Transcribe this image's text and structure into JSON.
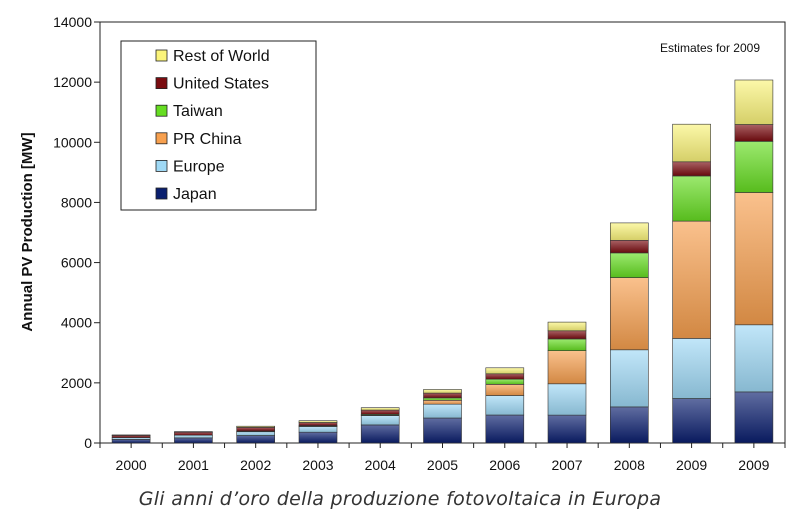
{
  "chart_data": {
    "type": "bar",
    "stacked": true,
    "categories": [
      "2000",
      "2001",
      "2002",
      "2003",
      "2004",
      "2005",
      "2006",
      "2007",
      "2008",
      "2009",
      "2009"
    ],
    "series": [
      {
        "name": "Japan",
        "color": "#0a1f6e",
        "values": [
          120,
          170,
          250,
          360,
          600,
          830,
          930,
          930,
          1200,
          1480,
          1700
        ]
      },
      {
        "name": "Europe",
        "color": "#9fd9f5",
        "values": [
          60,
          90,
          130,
          190,
          310,
          460,
          650,
          1040,
          1900,
          2000,
          2230
        ]
      },
      {
        "name": "PR China",
        "color": "#f7a04f",
        "values": [
          0,
          0,
          10,
          15,
          20,
          130,
          370,
          1100,
          2400,
          3900,
          4400
        ]
      },
      {
        "name": "Taiwan",
        "color": "#66dd22",
        "values": [
          0,
          0,
          10,
          15,
          25,
          80,
          170,
          390,
          820,
          1500,
          1700
        ]
      },
      {
        "name": "United States",
        "color": "#7a0c10",
        "values": [
          75,
          100,
          120,
          100,
          140,
          160,
          180,
          270,
          420,
          470,
          560
        ]
      },
      {
        "name": "Rest of World",
        "color": "#fbf47a",
        "values": [
          15,
          20,
          40,
          60,
          80,
          120,
          200,
          290,
          580,
          1250,
          1480
        ]
      }
    ],
    "legend_order": [
      "Rest of World",
      "United States",
      "Taiwan",
      "PR China",
      "Europe",
      "Japan"
    ],
    "legend_position": "top-left",
    "ylabel": "Annual PV Production [MW]",
    "xlabel": "",
    "ylim": [
      0,
      14000
    ],
    "yticks": [
      0,
      2000,
      4000,
      6000,
      8000,
      10000,
      12000,
      14000
    ],
    "annotation": "Estimates for 2009",
    "grid": false
  },
  "caption": "Gli anni d’oro della produzione fotovoltaica in Europa"
}
